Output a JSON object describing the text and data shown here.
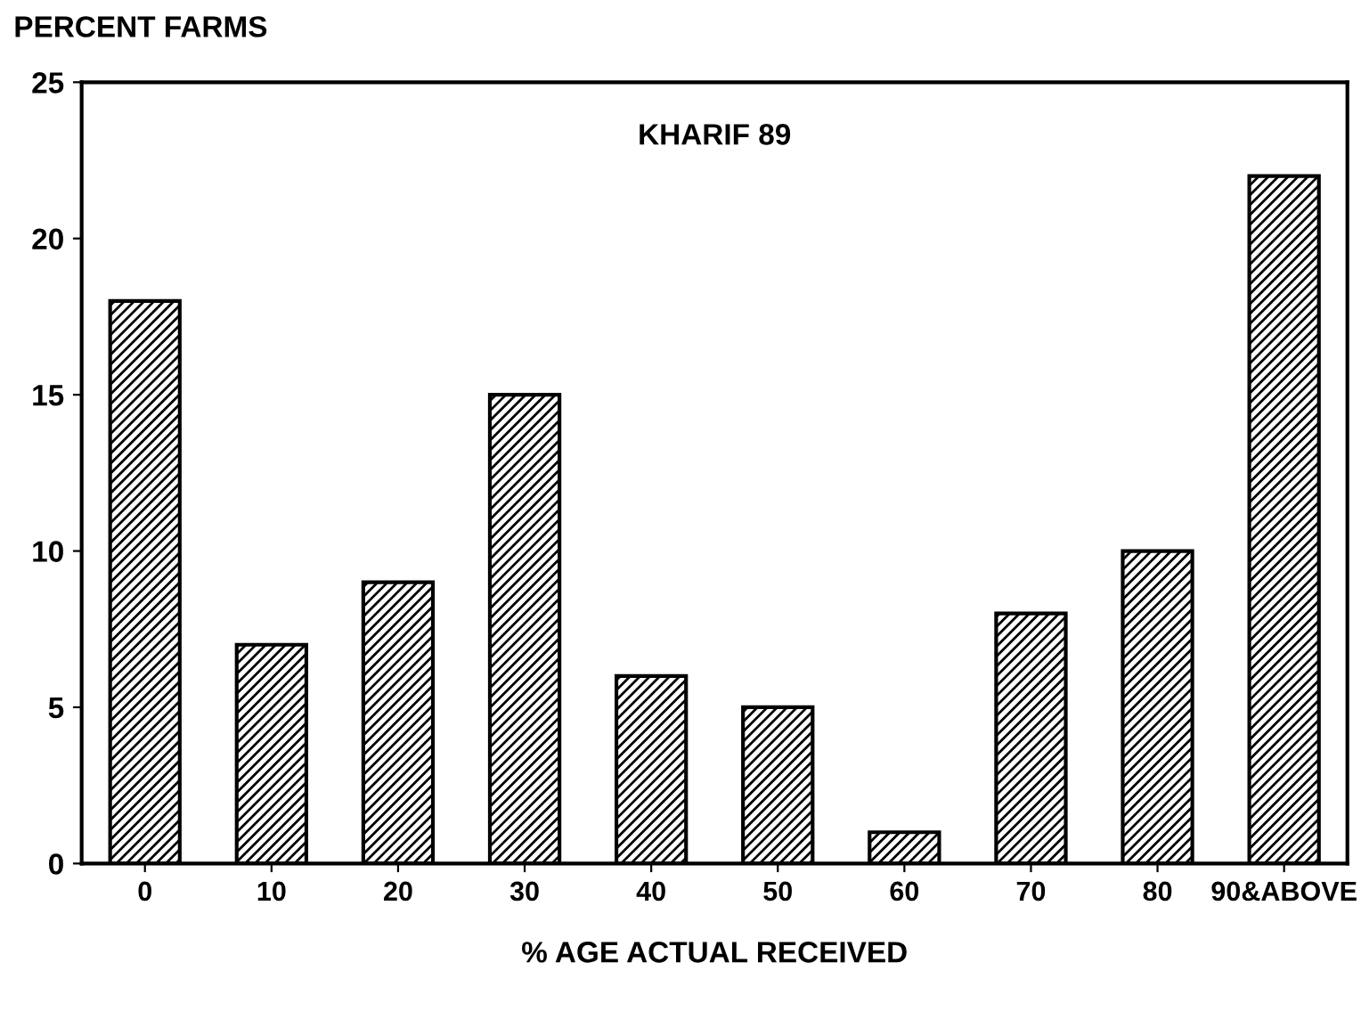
{
  "chart_data": {
    "type": "bar",
    "title": "KHARIF 89",
    "ylabel": "PERCENT FARMS",
    "xlabel": "% AGE ACTUAL RECEIVED",
    "categories": [
      "0",
      "10",
      "20",
      "30",
      "40",
      "50",
      "60",
      "70",
      "80",
      "90&ABOVE"
    ],
    "values": [
      18,
      7,
      9,
      15,
      6,
      5,
      1,
      8,
      10,
      22
    ],
    "color": "#000000",
    "ylim": [
      0,
      25
    ],
    "yticks": [
      0,
      5,
      10,
      15,
      20,
      25
    ],
    "grid": false,
    "legend": false
  }
}
